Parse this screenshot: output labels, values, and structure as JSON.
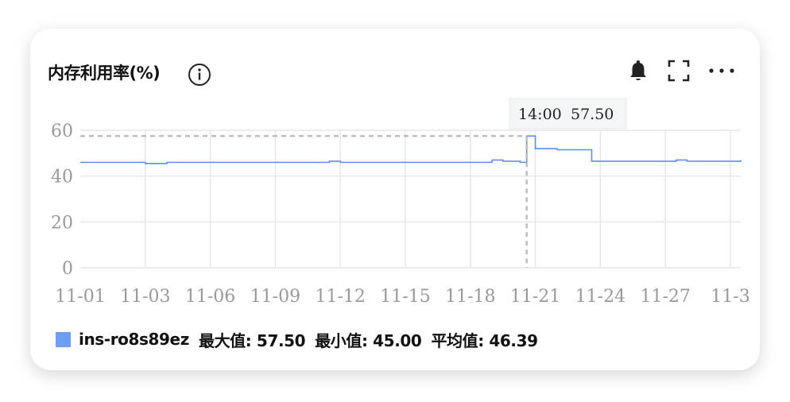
{
  "panel": {
    "title": "内存利用率(%)",
    "info_icon": "info-circle-icon",
    "actions": [
      "bell-icon",
      "fullscreen-icon",
      "more-icon"
    ]
  },
  "tooltip": {
    "time": "14:00",
    "value": "57.50"
  },
  "legend": {
    "series_name": "ins-ro8s89ez",
    "max_label": "最大值: 57.50",
    "min_label": "最小值: 45.00",
    "avg_label": "平均值: 46.39"
  },
  "colors": {
    "series": "#5b8ff0",
    "swatch": "#6f9cf5",
    "grid": "#e6e6e6",
    "crosshair": "#bbbbbb",
    "axis_text": "#999999"
  },
  "chart_data": {
    "type": "line",
    "title": "内存利用率(%)",
    "xlabel": "",
    "ylabel": "",
    "x_ticks": [
      "11-01",
      "11-03",
      "11-06",
      "11-09",
      "11-12",
      "11-15",
      "11-18",
      "11-21",
      "11-24",
      "11-27",
      "11-3"
    ],
    "y_ticks": [
      0,
      20,
      40,
      60
    ],
    "ylim": [
      0,
      60
    ],
    "grid": true,
    "series": [
      {
        "name": "ins-ro8s89ez",
        "x_days": [
          0,
          1,
          1.5,
          2,
          3,
          4,
          5,
          6,
          7,
          7.5,
          8,
          9,
          10,
          10.5,
          11,
          12,
          13,
          14,
          15,
          16,
          17,
          17.5,
          18,
          18.5,
          19.3,
          19.5,
          19.6,
          20,
          21,
          22,
          22.5,
          22.6,
          23,
          24,
          25,
          26,
          26.5,
          27,
          28,
          29,
          30,
          30.5
        ],
        "values": [
          46,
          46,
          46,
          45.5,
          46,
          46,
          46,
          46,
          46,
          46,
          46,
          46,
          46,
          46.5,
          46,
          46,
          46,
          46,
          46,
          46,
          46,
          46,
          47,
          46.5,
          46,
          46,
          57.5,
          52,
          51.5,
          51.5,
          51.5,
          46.5,
          46.5,
          46.5,
          46.5,
          46.5,
          47,
          46.5,
          46.5,
          46.5,
          47,
          47
        ]
      }
    ],
    "crosshair": {
      "x_day": 19.6,
      "y": 57.5
    }
  }
}
